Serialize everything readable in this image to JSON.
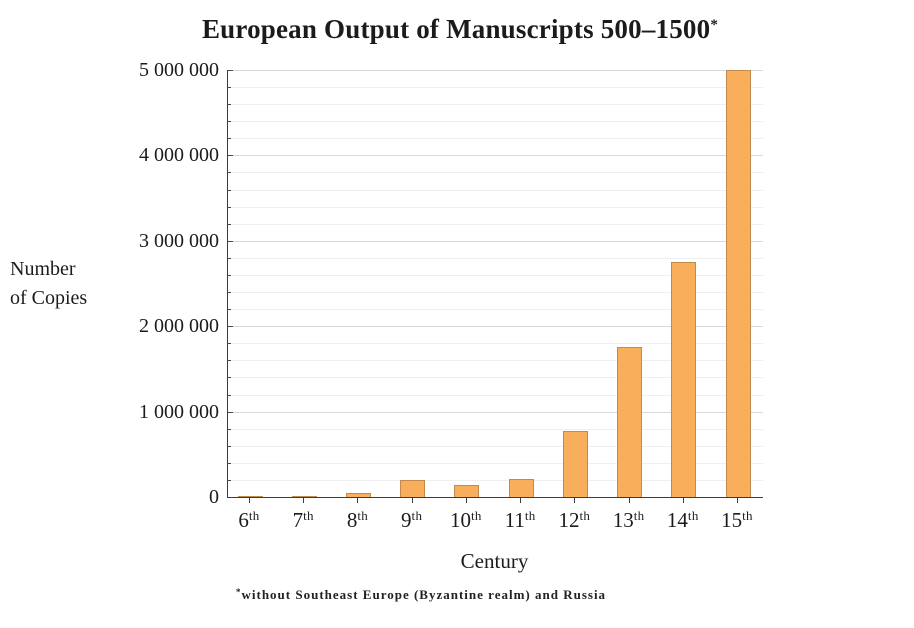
{
  "chart_data": {
    "type": "bar",
    "title": "European Output of Manuscripts 500–1500",
    "title_marker": "*",
    "xlabel": "Century",
    "ylabel_lines": [
      "Number",
      "of Copies"
    ],
    "categories": [
      "6",
      "7",
      "8",
      "9",
      "10",
      "11",
      "12",
      "13",
      "14",
      "15"
    ],
    "ordinal_suffix": "th",
    "values": [
      13418,
      10639,
      43702,
      201742,
      136368,
      212030,
      768721,
      1761951,
      2746951,
      4999161
    ],
    "ylim": [
      0,
      5000000
    ],
    "y_major_step": 1000000,
    "y_minor_step": 200000,
    "y_tick_labels": [
      "0",
      "1 000 000",
      "2 000 000",
      "3 000 000",
      "4 000 000",
      "5 000 000"
    ],
    "footnote_marker": "*",
    "footnote_text": "without Southeast Europe (Byzantine realm) and Russia",
    "grid": "on",
    "legend_position": "none",
    "colors": {
      "bar_fill": "#f9ae5b",
      "bar_border": "#c08a50",
      "grid_major": "#d8d8d8",
      "grid_minor": "#efefef",
      "axis": "#3c3c3c",
      "text": "#1c1c1c"
    }
  }
}
